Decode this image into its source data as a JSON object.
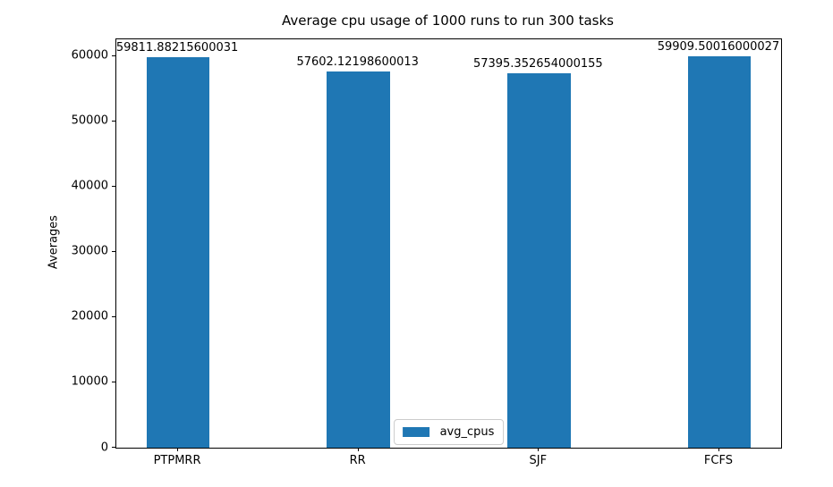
{
  "chart_data": {
    "type": "bar",
    "title": "Average cpu usage of 1000 runs to run 300 tasks",
    "xlabel": "",
    "ylabel": "Averages",
    "categories": [
      "PTPMRR",
      "RR",
      "SJF",
      "FCFS"
    ],
    "series": [
      {
        "name": "avg_cpus",
        "values": [
          59811.88215600031,
          57602.12198600013,
          57395.352654000155,
          59909.50016000027
        ],
        "color": "#1f77b4"
      }
    ],
    "value_labels": [
      "59811.88215600031",
      "57602.12198600013",
      "57395.352654000155",
      "59909.50016000027"
    ],
    "ylim": [
      0,
      62550
    ],
    "yticks": [
      0,
      10000,
      20000,
      30000,
      40000,
      50000,
      60000
    ],
    "ytick_labels": [
      "0",
      "10000",
      "20000",
      "30000",
      "40000",
      "50000",
      "60000"
    ],
    "grid": false,
    "legend": {
      "labels": [
        "avg_cpus"
      ],
      "position": "lower center"
    }
  }
}
